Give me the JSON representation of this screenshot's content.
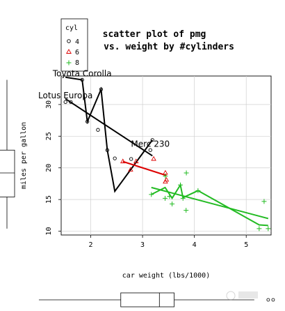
{
  "chart_data": {
    "type": "scatter",
    "title": [
      "scatter plot of pmg",
      "vs. weight by #cylinders"
    ],
    "xlabel": "car weight (lbs/1000)",
    "ylabel": "miles per gallon",
    "xlim": [
      1.43,
      5.48
    ],
    "ylim": [
      9.4,
      34.5
    ],
    "xticks": [
      2,
      3,
      4,
      5
    ],
    "yticks": [
      10,
      15,
      20,
      25,
      30
    ],
    "grid": true,
    "legend_title": "cyl",
    "legend_placement": "top-left (outside plot)",
    "series": [
      {
        "name": "4",
        "color": "#000000",
        "marker": "circle",
        "points": [
          {
            "x": 1.513,
            "y": 30.4
          },
          {
            "x": 1.615,
            "y": 30.4
          },
          {
            "x": 1.835,
            "y": 33.9
          },
          {
            "x": 1.935,
            "y": 27.3
          },
          {
            "x": 2.14,
            "y": 26.0
          },
          {
            "x": 2.2,
            "y": 32.4
          },
          {
            "x": 2.32,
            "y": 22.8
          },
          {
            "x": 2.465,
            "y": 21.5
          },
          {
            "x": 2.78,
            "y": 21.4
          },
          {
            "x": 3.15,
            "y": 22.8
          },
          {
            "x": 3.19,
            "y": 24.4
          }
        ],
        "fit_line": [
          {
            "x": 1.513,
            "y": 30.9
          },
          {
            "x": 3.19,
            "y": 21.9
          }
        ],
        "smooth_line": [
          {
            "x": 1.513,
            "y": 34.3
          },
          {
            "x": 1.835,
            "y": 33.9
          },
          {
            "x": 1.935,
            "y": 27.3
          },
          {
            "x": 2.2,
            "y": 32.4
          },
          {
            "x": 2.32,
            "y": 22.8
          },
          {
            "x": 2.465,
            "y": 16.3
          },
          {
            "x": 3.19,
            "y": 24.4
          }
        ]
      },
      {
        "name": "6",
        "color": "#dd0000",
        "marker": "triangle",
        "points": [
          {
            "x": 2.62,
            "y": 21.0
          },
          {
            "x": 2.77,
            "y": 19.7
          },
          {
            "x": 2.875,
            "y": 21.0
          },
          {
            "x": 3.215,
            "y": 21.4
          },
          {
            "x": 3.44,
            "y": 19.2
          },
          {
            "x": 3.44,
            "y": 17.8
          },
          {
            "x": 3.46,
            "y": 18.1
          }
        ],
        "fit_line": [
          {
            "x": 2.62,
            "y": 21.0
          },
          {
            "x": 3.46,
            "y": 18.8
          }
        ],
        "smooth_line": []
      },
      {
        "name": "8",
        "color": "#22bb22",
        "marker": "plus",
        "points": [
          {
            "x": 3.17,
            "y": 15.8
          },
          {
            "x": 3.435,
            "y": 15.2
          },
          {
            "x": 3.44,
            "y": 18.7
          },
          {
            "x": 3.52,
            "y": 15.5
          },
          {
            "x": 3.57,
            "y": 14.3
          },
          {
            "x": 3.73,
            "y": 17.3
          },
          {
            "x": 3.78,
            "y": 15.2
          },
          {
            "x": 3.84,
            "y": 13.3
          },
          {
            "x": 3.845,
            "y": 19.2
          },
          {
            "x": 4.07,
            "y": 16.4
          },
          {
            "x": 5.25,
            "y": 10.4
          },
          {
            "x": 5.345,
            "y": 14.7
          },
          {
            "x": 5.424,
            "y": 10.4
          }
        ],
        "fit_line": [
          {
            "x": 3.17,
            "y": 16.9
          },
          {
            "x": 5.424,
            "y": 12.0
          }
        ],
        "smooth_line": [
          {
            "x": 3.17,
            "y": 15.8
          },
          {
            "x": 3.435,
            "y": 16.9
          },
          {
            "x": 3.57,
            "y": 15.2
          },
          {
            "x": 3.73,
            "y": 17.3
          },
          {
            "x": 3.78,
            "y": 15.3
          },
          {
            "x": 4.07,
            "y": 16.4
          },
          {
            "x": 5.25,
            "y": 11.0
          },
          {
            "x": 5.424,
            "y": 10.9
          }
        ]
      }
    ],
    "annotations": [
      {
        "text": "Toyota Corolla",
        "x": 1.835,
        "y": 33.9
      },
      {
        "text": "Lotus Europa",
        "x": 1.513,
        "y": 30.4
      },
      {
        "text": "Merc 230",
        "x": 3.15,
        "y": 22.8
      }
    ],
    "marginal_boxplots": {
      "y_mpg": {
        "min": 10.4,
        "q1": 15.4,
        "median": 19.2,
        "q3": 22.8,
        "max": 33.9
      },
      "x_weight": {
        "min": 1.513,
        "q1": 2.58,
        "median": 3.325,
        "q3": 3.61,
        "max": 5.424,
        "outliers": [
          5.25,
          5.345
        ]
      }
    }
  }
}
